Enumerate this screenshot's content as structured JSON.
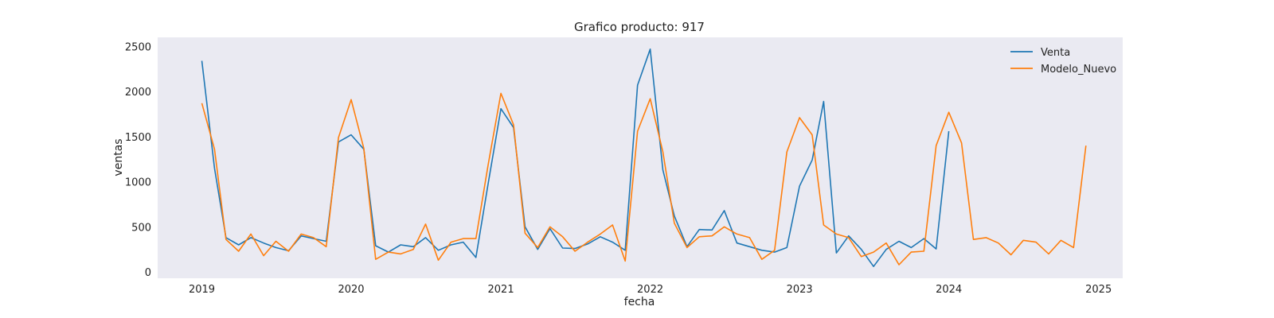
{
  "chart_data": {
    "type": "line",
    "title": "Grafico producto: 917",
    "xlabel": "fecha",
    "ylabel": "ventas",
    "x_start": "2019-01",
    "x_ticks": [
      "2019",
      "2020",
      "2021",
      "2022",
      "2023",
      "2024",
      "2025"
    ],
    "y_ticks": [
      "0",
      "500",
      "1000",
      "1500",
      "2000",
      "2500"
    ],
    "xlim": [
      "2018-09-15",
      "2025-03-01"
    ],
    "ylim": [
      -70,
      2600
    ],
    "grid": false,
    "legend_position": "top-right",
    "background_color": "#eaeaf2",
    "series": [
      {
        "name": "Venta",
        "color": "#1f77b4",
        "values": [
          2340,
          1150,
          380,
          300,
          380,
          320,
          270,
          235,
          400,
          370,
          340,
          1440,
          1520,
          1360,
          290,
          220,
          300,
          280,
          380,
          240,
          300,
          330,
          160,
          980,
          1810,
          1600,
          500,
          250,
          480,
          265,
          260,
          310,
          390,
          330,
          240,
          2070,
          2470,
          1130,
          620,
          280,
          470,
          465,
          680,
          320,
          280,
          240,
          220,
          270,
          950,
          1240,
          1890,
          210,
          400,
          250,
          60,
          250,
          340,
          270,
          370,
          255,
          1560
        ]
      },
      {
        "name": "Modelo_Nuevo",
        "color": "#ff7f0e",
        "values": [
          1870,
          1360,
          360,
          230,
          420,
          180,
          340,
          230,
          420,
          380,
          280,
          1490,
          1910,
          1370,
          140,
          220,
          200,
          250,
          530,
          130,
          330,
          370,
          370,
          1190,
          1980,
          1630,
          430,
          270,
          500,
          390,
          230,
          330,
          420,
          520,
          120,
          1560,
          1920,
          1330,
          540,
          270,
          390,
          400,
          500,
          420,
          380,
          140,
          240,
          1330,
          1710,
          1520,
          520,
          420,
          380,
          170,
          220,
          320,
          80,
          220,
          230,
          1400,
          1770,
          1430,
          360,
          380,
          320,
          190,
          350,
          330,
          200,
          350,
          270,
          1400
        ]
      }
    ]
  }
}
